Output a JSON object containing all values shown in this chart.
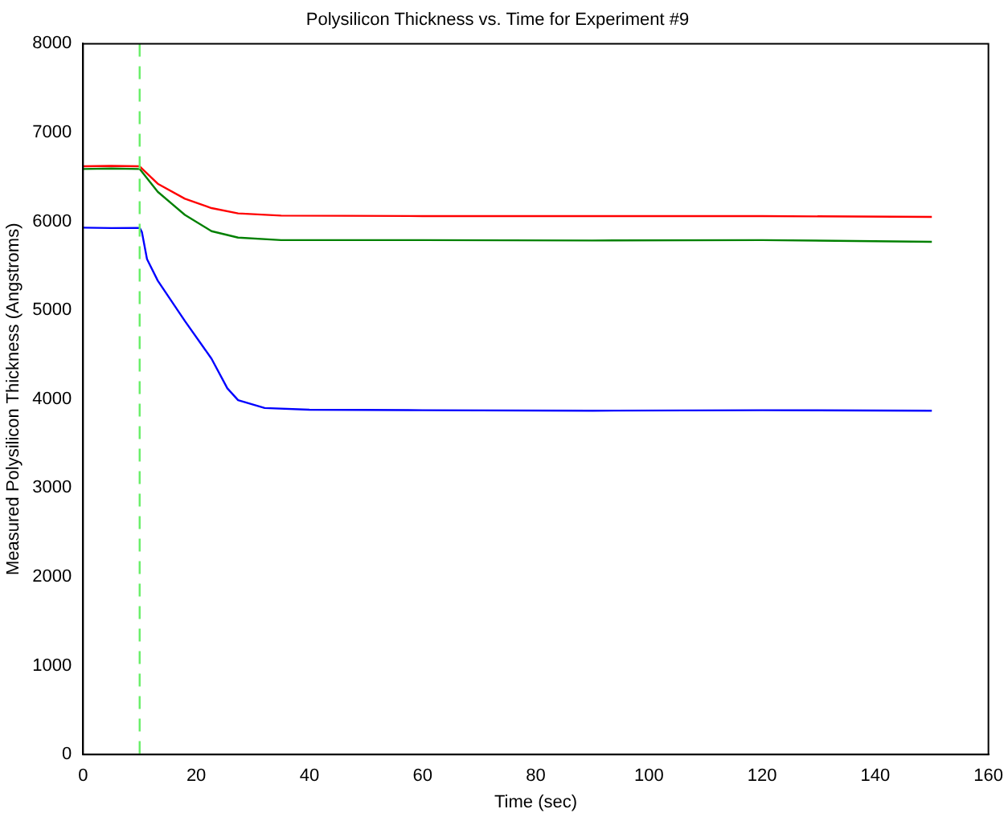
{
  "chart_data": {
    "type": "line",
    "title": "Polysilicon Thickness vs. Time for Experiment #9",
    "xlabel": "Time (sec)",
    "ylabel": "Measured Polysilicon Thickness (Angstroms)",
    "xlim": [
      0,
      160
    ],
    "xticks": [
      0,
      20,
      40,
      60,
      80,
      100,
      120,
      140,
      160
    ],
    "ylim": [
      0,
      8000
    ],
    "yticks": [
      0,
      1000,
      2000,
      3000,
      4000,
      5000,
      6000,
      7000,
      8000
    ],
    "grid": false,
    "legend": false,
    "marker": "none",
    "line_style": "solid",
    "ref_lines": [
      {
        "axis": "x",
        "value": 10,
        "color": "#66ee66",
        "line_style": "dashed"
      }
    ],
    "series": [
      {
        "color": "#ff0000",
        "x": [
          0,
          5,
          10,
          13.2,
          18,
          22.7,
          27.4,
          35,
          60,
          90,
          120,
          150
        ],
        "values": [
          6620,
          6625,
          6620,
          6424,
          6255,
          6150,
          6090,
          6065,
          6060,
          6060,
          6060,
          6050
        ]
      },
      {
        "color": "#008000",
        "x": [
          0,
          5,
          10,
          13.2,
          18,
          22.7,
          27.4,
          35,
          60,
          90,
          120,
          150
        ],
        "values": [
          6590,
          6595,
          6590,
          6333,
          6073,
          5890,
          5818,
          5790,
          5790,
          5785,
          5790,
          5770
        ]
      },
      {
        "color": "#0000ff",
        "x": [
          0,
          5,
          10,
          10.4,
          11.3,
          13.2,
          18,
          22.7,
          25.5,
          27.4,
          32.1,
          40,
          60,
          90,
          120,
          150
        ],
        "values": [
          5930,
          5925,
          5927,
          5880,
          5576,
          5333,
          4879,
          4455,
          4121,
          3988,
          3900,
          3880,
          3875,
          3870,
          3875,
          3870
        ]
      }
    ]
  }
}
